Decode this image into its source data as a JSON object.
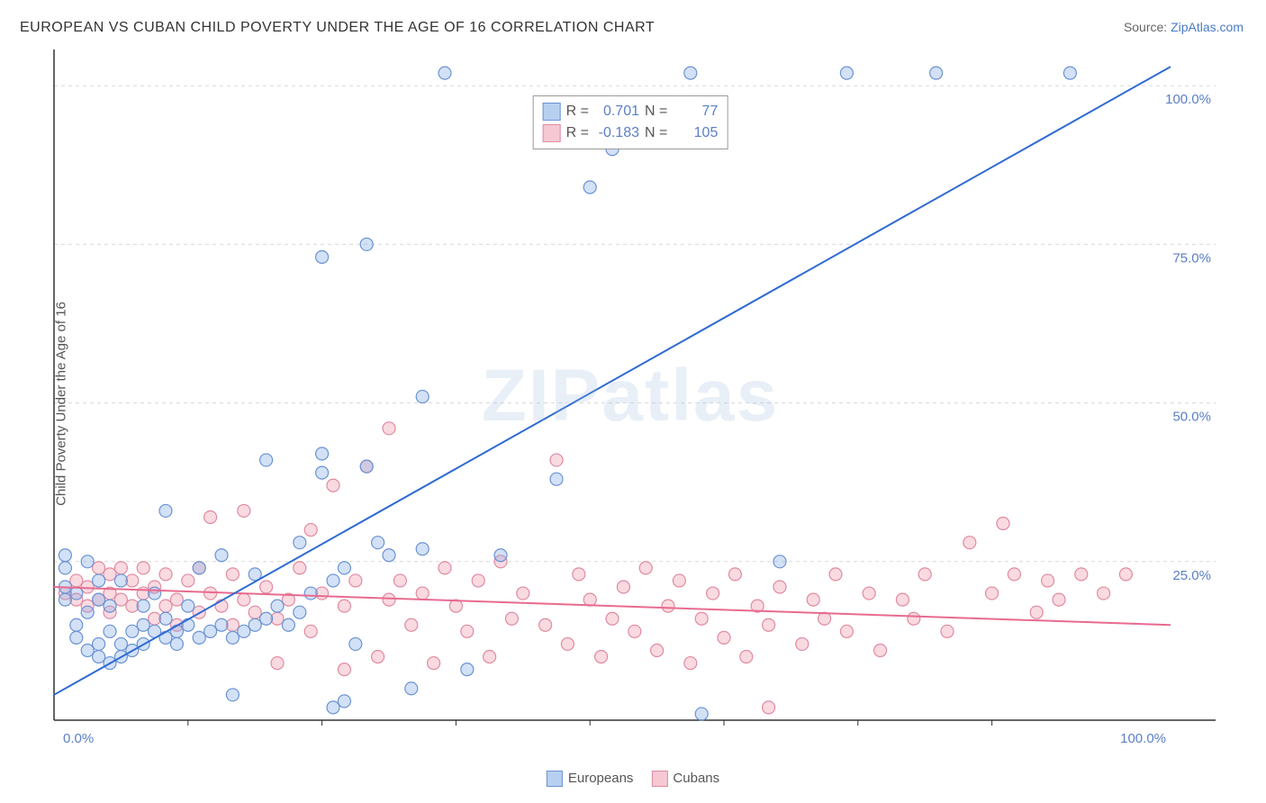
{
  "title": "EUROPEAN VS CUBAN CHILD POVERTY UNDER THE AGE OF 16 CORRELATION CHART",
  "source_label": "Source: ",
  "source_link": "ZipAtlas.com",
  "y_axis_label": "Child Poverty Under the Age of 16",
  "watermark": "ZIPatlas",
  "chart": {
    "type": "scatter",
    "xlim": [
      0,
      100
    ],
    "ylim": [
      0,
      105
    ],
    "y_ticks": [
      25,
      50,
      75,
      100
    ],
    "y_tick_labels": [
      "25.0%",
      "50.0%",
      "75.0%",
      "100.0%"
    ],
    "x_ticks": [
      0,
      100
    ],
    "x_tick_labels": [
      "0.0%",
      "100.0%"
    ],
    "x_minor_ticks": [
      12,
      24,
      36,
      48,
      60,
      72,
      84
    ],
    "grid_color": "#d8d8d8",
    "axis_color": "#333",
    "background_color": "#ffffff",
    "marker_radius": 7,
    "marker_stroke_width": 1.2,
    "line_width": 2
  },
  "series": {
    "europeans": {
      "label": "Europeans",
      "fill": "rgba(130, 170, 230, 0.35)",
      "stroke": "#6a93d4",
      "swatch_fill": "#b8d0f0",
      "swatch_stroke": "#6a93d4",
      "r_value": "0.701",
      "n_value": "77",
      "trend": {
        "x1": 0,
        "y1": 4,
        "x2": 100,
        "y2": 103,
        "color": "#2e6bd4"
      },
      "points": [
        [
          1,
          19
        ],
        [
          1,
          21
        ],
        [
          1,
          24
        ],
        [
          1,
          26
        ],
        [
          2,
          20
        ],
        [
          2,
          15
        ],
        [
          2,
          13
        ],
        [
          3,
          25
        ],
        [
          3,
          17
        ],
        [
          3,
          11
        ],
        [
          4,
          10
        ],
        [
          4,
          12
        ],
        [
          4,
          19
        ],
        [
          4,
          22
        ],
        [
          5,
          9
        ],
        [
          5,
          14
        ],
        [
          5,
          18
        ],
        [
          6,
          10
        ],
        [
          6,
          12
        ],
        [
          6,
          22
        ],
        [
          7,
          11
        ],
        [
          7,
          14
        ],
        [
          8,
          15
        ],
        [
          8,
          12
        ],
        [
          8,
          18
        ],
        [
          9,
          14
        ],
        [
          9,
          20
        ],
        [
          10,
          13
        ],
        [
          10,
          16
        ],
        [
          10,
          33
        ],
        [
          11,
          12
        ],
        [
          11,
          14
        ],
        [
          12,
          15
        ],
        [
          12,
          18
        ],
        [
          13,
          13
        ],
        [
          13,
          24
        ],
        [
          14,
          14
        ],
        [
          15,
          15
        ],
        [
          15,
          26
        ],
        [
          16,
          4
        ],
        [
          16,
          13
        ],
        [
          17,
          14
        ],
        [
          18,
          15
        ],
        [
          18,
          23
        ],
        [
          19,
          16
        ],
        [
          19,
          41
        ],
        [
          20,
          18
        ],
        [
          21,
          15
        ],
        [
          22,
          17
        ],
        [
          22,
          28
        ],
        [
          23,
          20
        ],
        [
          24,
          39
        ],
        [
          24,
          42
        ],
        [
          24,
          73
        ],
        [
          25,
          2
        ],
        [
          25,
          22
        ],
        [
          26,
          3
        ],
        [
          26,
          24
        ],
        [
          27,
          12
        ],
        [
          28,
          40
        ],
        [
          28,
          75
        ],
        [
          29,
          28
        ],
        [
          30,
          26
        ],
        [
          32,
          5
        ],
        [
          33,
          27
        ],
        [
          33,
          51
        ],
        [
          35,
          102
        ],
        [
          37,
          8
        ],
        [
          40,
          26
        ],
        [
          45,
          38
        ],
        [
          48,
          84
        ],
        [
          50,
          90
        ],
        [
          57,
          102
        ],
        [
          58,
          1
        ],
        [
          65,
          25
        ],
        [
          71,
          102
        ],
        [
          79,
          102
        ],
        [
          91,
          102
        ]
      ]
    },
    "cubans": {
      "label": "Cubans",
      "fill": "rgba(240, 150, 170, 0.35)",
      "stroke": "#e08aa0",
      "swatch_fill": "#f5c8d4",
      "swatch_stroke": "#e08aa0",
      "r_value": "-0.183",
      "n_value": "105",
      "trend": {
        "x1": 0,
        "y1": 21,
        "x2": 100,
        "y2": 15,
        "color": "#e86b8f"
      },
      "points": [
        [
          1,
          20
        ],
        [
          2,
          19
        ],
        [
          2,
          22
        ],
        [
          3,
          18
        ],
        [
          3,
          21
        ],
        [
          4,
          19
        ],
        [
          4,
          24
        ],
        [
          5,
          17
        ],
        [
          5,
          20
        ],
        [
          5,
          23
        ],
        [
          6,
          19
        ],
        [
          6,
          24
        ],
        [
          7,
          18
        ],
        [
          7,
          22
        ],
        [
          8,
          20
        ],
        [
          8,
          24
        ],
        [
          9,
          16
        ],
        [
          9,
          21
        ],
        [
          10,
          18
        ],
        [
          10,
          23
        ],
        [
          11,
          15
        ],
        [
          11,
          19
        ],
        [
          12,
          22
        ],
        [
          13,
          17
        ],
        [
          13,
          24
        ],
        [
          14,
          20
        ],
        [
          14,
          32
        ],
        [
          15,
          18
        ],
        [
          16,
          15
        ],
        [
          16,
          23
        ],
        [
          17,
          19
        ],
        [
          17,
          33
        ],
        [
          18,
          17
        ],
        [
          19,
          21
        ],
        [
          20,
          9
        ],
        [
          20,
          16
        ],
        [
          21,
          19
        ],
        [
          22,
          24
        ],
        [
          23,
          14
        ],
        [
          23,
          30
        ],
        [
          24,
          20
        ],
        [
          25,
          37
        ],
        [
          26,
          8
        ],
        [
          26,
          18
        ],
        [
          27,
          22
        ],
        [
          28,
          40
        ],
        [
          29,
          10
        ],
        [
          30,
          19
        ],
        [
          30,
          46
        ],
        [
          31,
          22
        ],
        [
          32,
          15
        ],
        [
          33,
          20
        ],
        [
          34,
          9
        ],
        [
          35,
          24
        ],
        [
          36,
          18
        ],
        [
          37,
          14
        ],
        [
          38,
          22
        ],
        [
          39,
          10
        ],
        [
          40,
          25
        ],
        [
          41,
          16
        ],
        [
          42,
          20
        ],
        [
          44,
          15
        ],
        [
          45,
          41
        ],
        [
          46,
          12
        ],
        [
          47,
          23
        ],
        [
          48,
          19
        ],
        [
          49,
          10
        ],
        [
          50,
          16
        ],
        [
          51,
          21
        ],
        [
          52,
          14
        ],
        [
          53,
          24
        ],
        [
          54,
          11
        ],
        [
          55,
          18
        ],
        [
          56,
          22
        ],
        [
          57,
          9
        ],
        [
          58,
          16
        ],
        [
          59,
          20
        ],
        [
          60,
          13
        ],
        [
          61,
          23
        ],
        [
          62,
          10
        ],
        [
          63,
          18
        ],
        [
          64,
          2
        ],
        [
          64,
          15
        ],
        [
          65,
          21
        ],
        [
          67,
          12
        ],
        [
          68,
          19
        ],
        [
          69,
          16
        ],
        [
          70,
          23
        ],
        [
          71,
          14
        ],
        [
          73,
          20
        ],
        [
          74,
          11
        ],
        [
          76,
          19
        ],
        [
          77,
          16
        ],
        [
          78,
          23
        ],
        [
          80,
          14
        ],
        [
          82,
          28
        ],
        [
          84,
          20
        ],
        [
          85,
          31
        ],
        [
          86,
          23
        ],
        [
          88,
          17
        ],
        [
          89,
          22
        ],
        [
          90,
          19
        ],
        [
          92,
          23
        ],
        [
          94,
          20
        ],
        [
          96,
          23
        ]
      ]
    }
  },
  "stat_legend": {
    "r_label": "R =",
    "n_label": "N ="
  }
}
